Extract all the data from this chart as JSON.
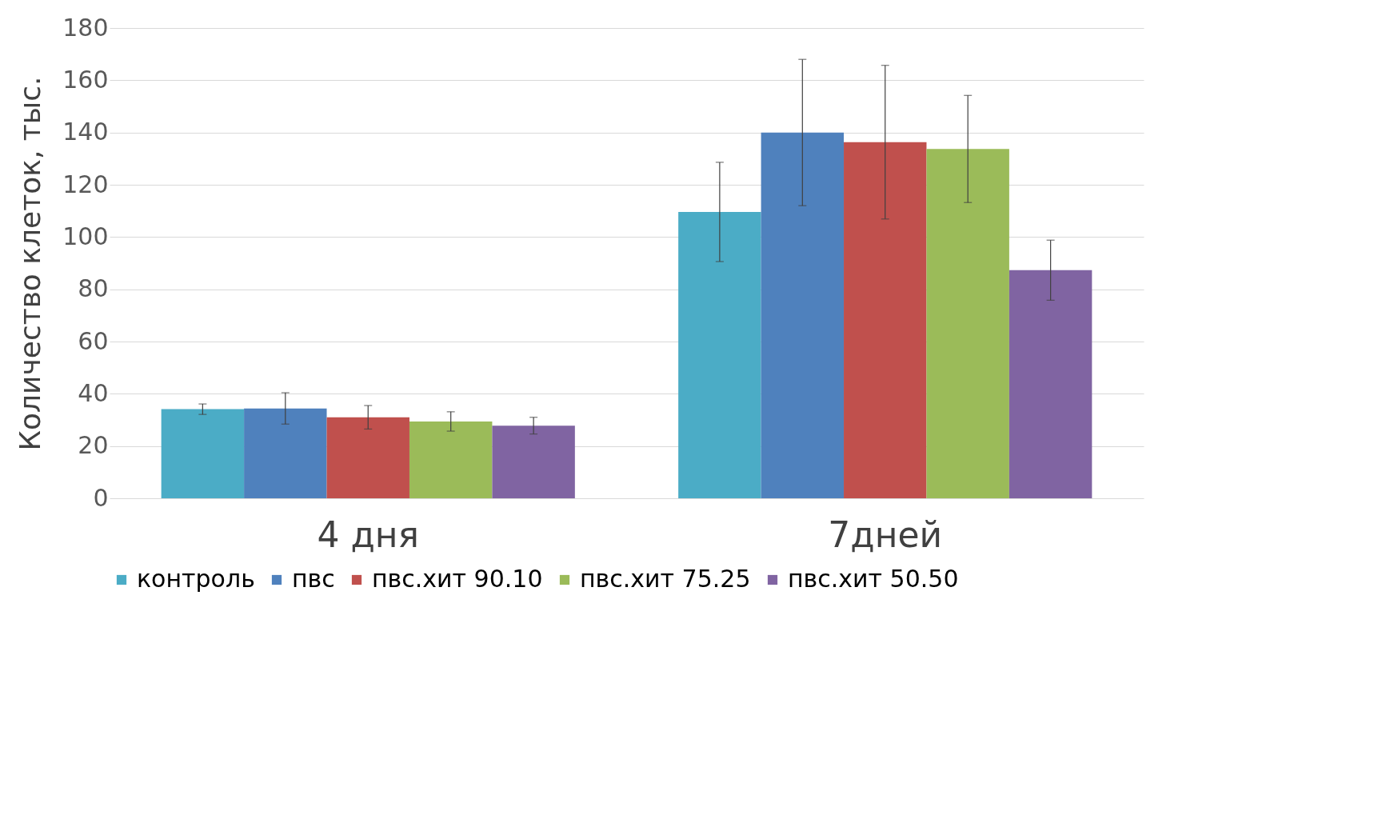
{
  "chart_data": {
    "type": "bar",
    "ylabel": "Количество клеток,  тыс.",
    "categories": [
      "4 дня",
      "7дней"
    ],
    "series": [
      {
        "name": "контроль",
        "color": "#4bacc6",
        "values": [
          34.1,
          109.6
        ],
        "errors": [
          2,
          19
        ]
      },
      {
        "name": "пвс",
        "color": "#4f81bd",
        "values": [
          34.4,
          140
        ],
        "errors": [
          6,
          28
        ]
      },
      {
        "name": "пвс.хит 90.10",
        "color": "#c0504d",
        "values": [
          31,
          136.3
        ],
        "errors": [
          4.5,
          29.4
        ]
      },
      {
        "name": "пвс.хит 75.25",
        "color": "#9bbb59",
        "values": [
          29.4,
          133.7
        ],
        "errors": [
          3.7,
          20.5
        ]
      },
      {
        "name": "пвс.хит 50.50",
        "color": "#8064a2",
        "values": [
          27.8,
          87.3
        ],
        "errors": [
          3.2,
          11.5
        ]
      }
    ],
    "ylim": [
      0,
      180
    ],
    "yticks": [
      0,
      20,
      40,
      60,
      80,
      100,
      120,
      140,
      160,
      180
    ],
    "grid": "y",
    "legend": "bottom"
  }
}
